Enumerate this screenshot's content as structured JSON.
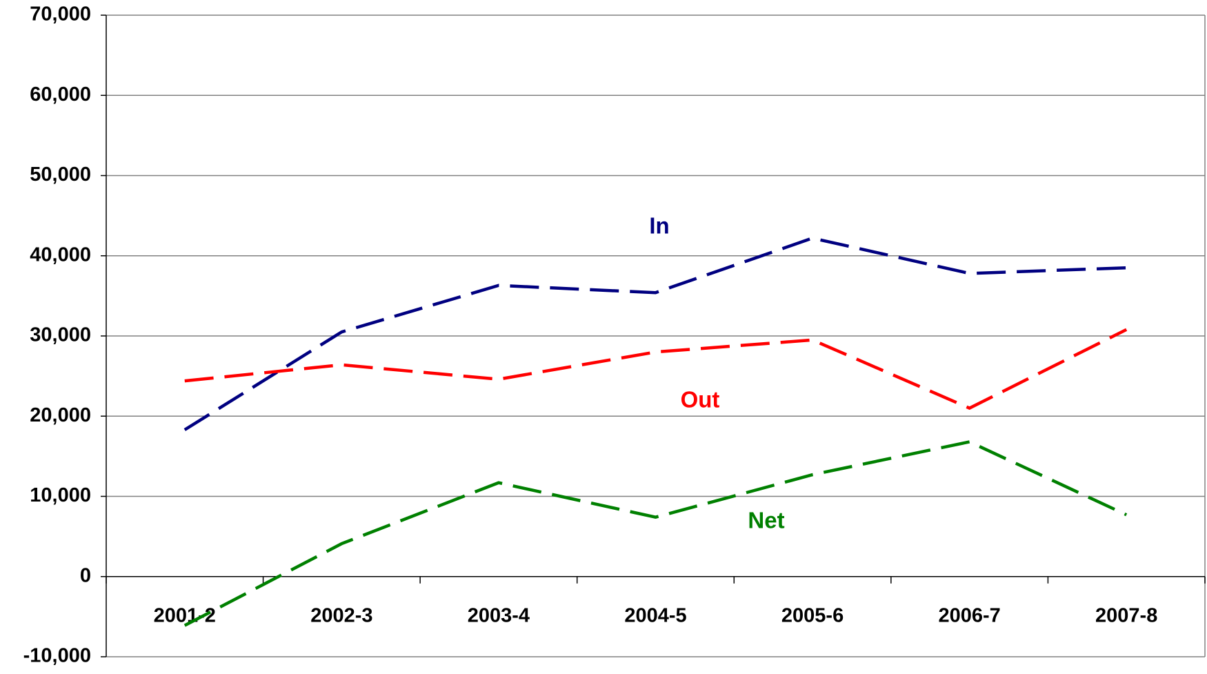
{
  "chart_data": {
    "type": "line",
    "categories": [
      "2001-2",
      "2002-3",
      "2003-4",
      "2004-5",
      "2005-6",
      "2006-7",
      "2007-8"
    ],
    "series": [
      {
        "name": "In",
        "color": "#000080",
        "values": [
          18300,
          30500,
          36300,
          35400,
          42200,
          37800,
          38500
        ]
      },
      {
        "name": "Out",
        "color": "#ff0000",
        "values": [
          24400,
          26400,
          24600,
          28000,
          29500,
          21000,
          30800
        ]
      },
      {
        "name": "Net",
        "color": "#008000",
        "values": [
          -6100,
          4100,
          11700,
          7400,
          12700,
          16800,
          7700
        ]
      }
    ],
    "ylim": [
      -10000,
      70000
    ],
    "yticks": [
      {
        "value": -10000,
        "label": "-10,000"
      },
      0,
      {
        "value": 10000,
        "label": "10,000"
      },
      {
        "value": 20000,
        "label": "20,000"
      },
      {
        "value": 30000,
        "label": "30,000"
      },
      {
        "value": 40000,
        "label": "40,000"
      },
      {
        "value": 50000,
        "label": "50,000"
      },
      {
        "value": 60000,
        "label": "60,000"
      },
      {
        "value": 70000,
        "label": "70,000"
      }
    ],
    "grid": true
  }
}
